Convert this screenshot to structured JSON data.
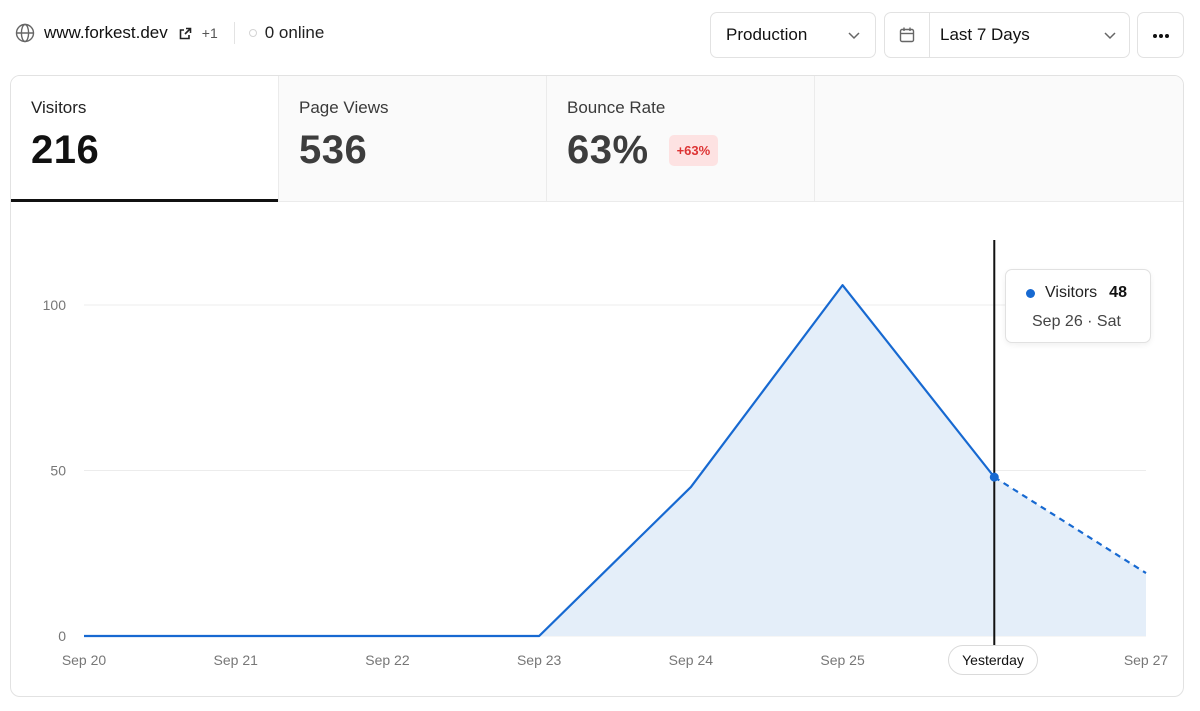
{
  "header": {
    "site": "www.forkest.dev",
    "extra_domains": "+1",
    "online": "0 online",
    "environment": "Production",
    "date_range": "Last 7 Days",
    "icons": {
      "globe": "globe-icon",
      "external": "external-link-icon",
      "calendar": "calendar-icon",
      "more": "more-horizontal-icon"
    }
  },
  "tabs": [
    {
      "label": "Visitors",
      "value": "216",
      "active": true
    },
    {
      "label": "Page Views",
      "value": "536",
      "active": false
    },
    {
      "label": "Bounce Rate",
      "value": "63%",
      "badge": "+63%",
      "active": false
    }
  ],
  "tooltip": {
    "series": "Visitors",
    "value": "48",
    "date": "Sep 26 · Sat"
  },
  "colors": {
    "line": "#1769d1",
    "fill": "#e4eef9",
    "badge_bg": "#fde2e2",
    "badge_text": "#dd3333"
  },
  "chart_data": {
    "type": "area",
    "title": "",
    "xlabel": "",
    "ylabel": "",
    "categories": [
      "Sep 20",
      "Sep 21",
      "Sep 22",
      "Sep 23",
      "Sep 24",
      "Sep 25",
      "Yesterday",
      "Sep 27"
    ],
    "series": [
      {
        "name": "Visitors",
        "values": [
          0,
          0,
          0,
          0,
          45,
          106,
          48,
          19
        ]
      }
    ],
    "y_ticks": [
      0,
      50,
      100
    ],
    "ylim": [
      0,
      100
    ],
    "dashed_from_index": 6,
    "highlight_index": 6,
    "grid": true
  }
}
